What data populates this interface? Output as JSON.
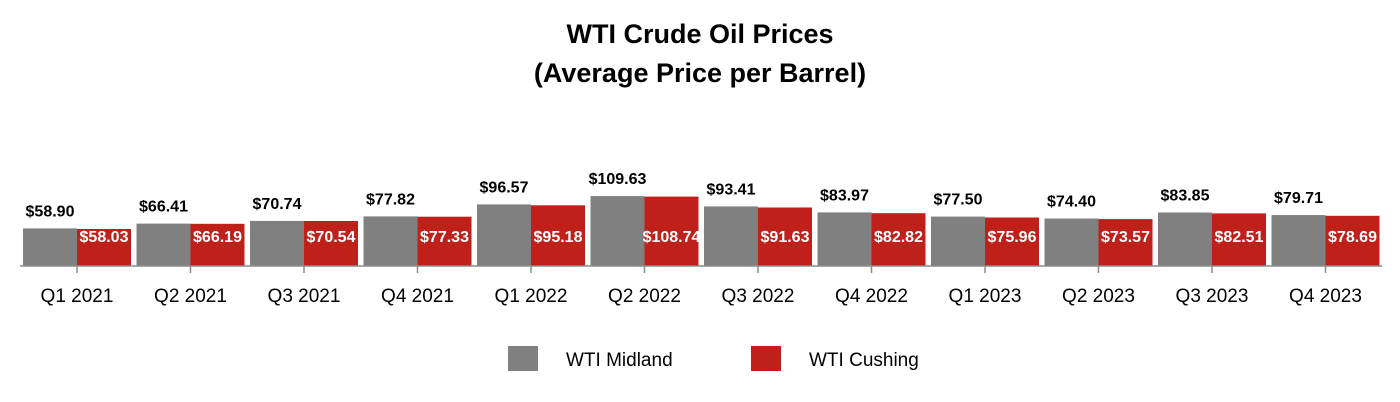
{
  "chart_data": {
    "type": "bar",
    "title": "WTI Crude Oil Prices",
    "subtitle": "(Average Price per Barrel)",
    "xlabel": "",
    "ylabel": "",
    "ylim": [
      0,
      115
    ],
    "grid": false,
    "legend_position": "bottom",
    "categories": [
      "Q1 2021",
      "Q2 2021",
      "Q3 2021",
      "Q4 2021",
      "Q1 2022",
      "Q2 2022",
      "Q3 2022",
      "Q4 2022",
      "Q1 2023",
      "Q2 2023",
      "Q3 2023",
      "Q4 2023"
    ],
    "series": [
      {
        "name": "WTI Midland",
        "color": "#808080",
        "values": [
          58.9,
          66.41,
          70.74,
          77.82,
          96.57,
          109.63,
          93.41,
          83.97,
          77.5,
          74.4,
          83.85,
          79.71
        ],
        "labels": [
          "$58.90",
          "$66.41",
          "$70.74",
          "$77.82",
          "$96.57",
          "$109.63",
          "$93.41",
          "$83.97",
          "$77.50",
          "$74.40",
          "$83.85",
          "$79.71"
        ]
      },
      {
        "name": "WTI Cushing",
        "color": "#C0201A",
        "values": [
          58.03,
          66.19,
          70.54,
          77.33,
          95.18,
          108.74,
          91.63,
          82.82,
          75.96,
          73.57,
          82.51,
          78.69
        ],
        "labels": [
          "$58.03",
          "$66.19",
          "$70.54",
          "$77.33",
          "$95.18",
          "$108.74",
          "$91.63",
          "$82.82",
          "$75.96",
          "$73.57",
          "$82.51",
          "$78.69"
        ]
      }
    ]
  }
}
